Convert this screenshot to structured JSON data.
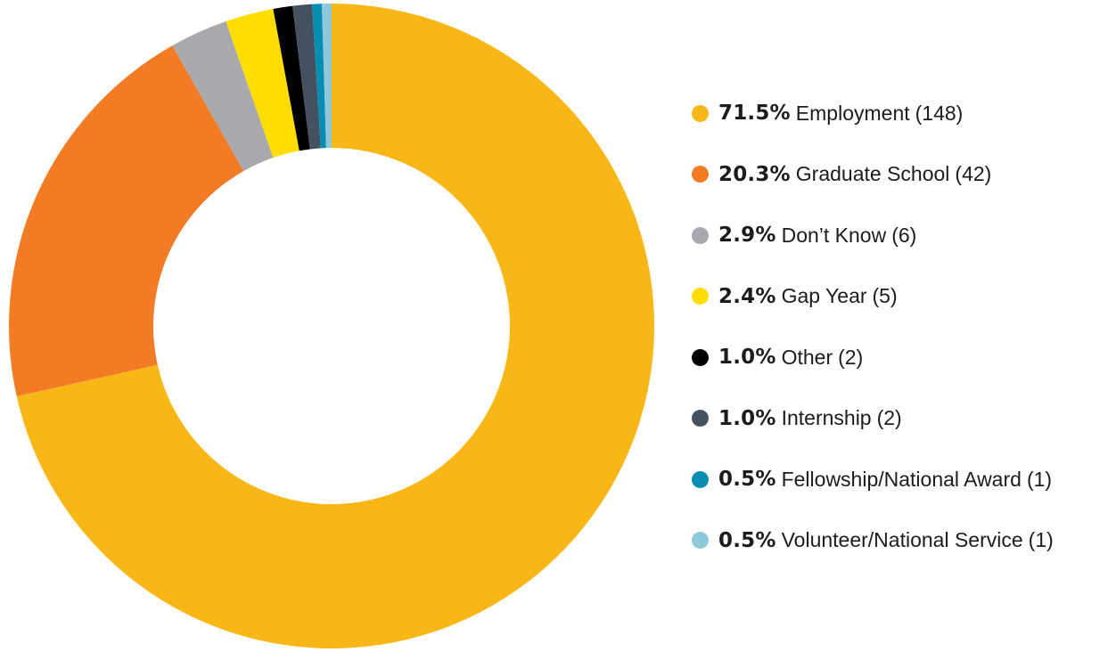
{
  "chart_data": {
    "type": "pie",
    "donut": true,
    "legend_position": "right",
    "slices": [
      {
        "percent_label": "71.5%",
        "label": "Employment",
        "count_label": "(148)",
        "value": 148,
        "color": "#F9B617"
      },
      {
        "percent_label": "20.3%",
        "label": "Graduate School",
        "count_label": "(42)",
        "value": 42,
        "color": "#F27B26"
      },
      {
        "percent_label": "2.9%",
        "label": "Don’t Know",
        "count_label": "(6)",
        "value": 6,
        "color": "#A8A9AD"
      },
      {
        "percent_label": "2.4%",
        "label": "Gap Year",
        "count_label": "(5)",
        "value": 5,
        "color": "#FFDD00"
      },
      {
        "percent_label": "1.0%",
        "label": "Other",
        "count_label": "(2)",
        "value": 2,
        "color": "#000000"
      },
      {
        "percent_label": "1.0%",
        "label": "Internship",
        "count_label": "(2)",
        "value": 2,
        "color": "#44515E"
      },
      {
        "percent_label": "0.5%",
        "label": "Fellowship/National Award",
        "count_label": "(1)",
        "value": 1,
        "color": "#0A8DB2"
      },
      {
        "percent_label": "0.5%",
        "label": "Volunteer/National Service",
        "count_label": "(1)",
        "value": 1,
        "color": "#8FC8DA"
      }
    ]
  }
}
